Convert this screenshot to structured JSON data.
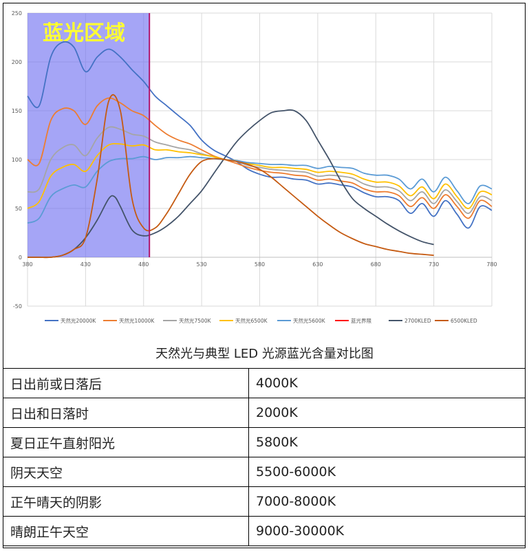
{
  "chart_data": {
    "type": "line",
    "title": "",
    "region_label": "蓝光区域",
    "region_range": [
      380,
      485
    ],
    "xlim": [
      380,
      780
    ],
    "ylim": [
      -50,
      250
    ],
    "x_ticks": [
      380,
      430,
      480,
      530,
      580,
      630,
      680,
      730,
      780
    ],
    "y_ticks": [
      -50,
      0,
      50,
      100,
      150,
      200,
      250
    ],
    "grid": true,
    "legend_position": "bottom",
    "series": [
      {
        "name": "天然光20000K",
        "color": "#4472c4",
        "x": [
          380,
          390,
          400,
          410,
          420,
          430,
          440,
          450,
          460,
          470,
          480,
          490,
          500,
          510,
          520,
          530,
          540,
          550,
          560,
          570,
          580,
          590,
          600,
          610,
          620,
          630,
          640,
          650,
          660,
          670,
          680,
          690,
          700,
          710,
          720,
          730,
          740,
          750,
          760,
          770,
          780
        ],
        "y": [
          165,
          155,
          205,
          220,
          215,
          190,
          205,
          213,
          205,
          192,
          180,
          165,
          155,
          145,
          135,
          120,
          110,
          104,
          98,
          90,
          85,
          82,
          82,
          80,
          79,
          75,
          76,
          74,
          72,
          66,
          62,
          62,
          58,
          45,
          55,
          42,
          58,
          44,
          30,
          52,
          48
        ]
      },
      {
        "name": "天然光10000K",
        "color": "#ed7d31",
        "x": [
          380,
          390,
          400,
          410,
          420,
          430,
          440,
          450,
          460,
          470,
          480,
          490,
          500,
          510,
          520,
          530,
          540,
          550,
          560,
          570,
          580,
          590,
          600,
          610,
          620,
          630,
          640,
          650,
          660,
          670,
          680,
          690,
          700,
          710,
          720,
          730,
          740,
          750,
          760,
          770,
          780
        ],
        "y": [
          100,
          96,
          140,
          152,
          150,
          136,
          155,
          163,
          158,
          150,
          145,
          135,
          126,
          120,
          116,
          110,
          104,
          100,
          96,
          92,
          89,
          87,
          86,
          84,
          83,
          79,
          80,
          78,
          76,
          70,
          67,
          67,
          63,
          52,
          61,
          50,
          64,
          52,
          40,
          58,
          52
        ]
      },
      {
        "name": "天然光7500K",
        "color": "#a5a5a5",
        "x": [
          380,
          390,
          400,
          410,
          420,
          430,
          440,
          450,
          460,
          470,
          480,
          490,
          500,
          510,
          520,
          530,
          540,
          550,
          560,
          570,
          580,
          590,
          600,
          610,
          620,
          630,
          640,
          650,
          660,
          670,
          680,
          690,
          700,
          710,
          720,
          730,
          740,
          750,
          760,
          770,
          780
        ],
        "y": [
          67,
          70,
          100,
          112,
          115,
          104,
          122,
          133,
          131,
          126,
          124,
          118,
          115,
          112,
          110,
          106,
          103,
          100,
          98,
          94,
          92,
          90,
          89,
          88,
          87,
          83,
          84,
          83,
          81,
          75,
          72,
          72,
          68,
          58,
          67,
          55,
          69,
          57,
          45,
          62,
          58
        ]
      },
      {
        "name": "天然光6500K",
        "color": "#ffc000",
        "x": [
          380,
          390,
          400,
          410,
          420,
          430,
          440,
          450,
          460,
          470,
          480,
          490,
          500,
          510,
          520,
          530,
          540,
          550,
          560,
          570,
          580,
          590,
          600,
          610,
          620,
          630,
          640,
          650,
          660,
          670,
          680,
          690,
          700,
          710,
          720,
          730,
          740,
          750,
          760,
          770,
          780
        ],
        "y": [
          50,
          57,
          83,
          92,
          95,
          88,
          104,
          115,
          116,
          114,
          115,
          110,
          110,
          108,
          107,
          105,
          103,
          100,
          99,
          96,
          94,
          92,
          92,
          91,
          90,
          87,
          88,
          87,
          85,
          80,
          77,
          77,
          73,
          63,
          72,
          60,
          75,
          62,
          50,
          67,
          64
        ]
      },
      {
        "name": "天然光5600K",
        "color": "#5b9bd5",
        "x": [
          380,
          390,
          400,
          410,
          420,
          430,
          440,
          450,
          460,
          470,
          480,
          490,
          500,
          510,
          520,
          530,
          540,
          550,
          560,
          570,
          580,
          590,
          600,
          610,
          620,
          630,
          640,
          650,
          660,
          670,
          680,
          690,
          700,
          710,
          720,
          730,
          740,
          750,
          760,
          770,
          780
        ],
        "y": [
          35,
          40,
          62,
          70,
          74,
          72,
          88,
          98,
          101,
          101,
          103,
          100,
          102,
          102,
          103,
          102,
          101,
          100,
          99,
          97,
          96,
          95,
          95,
          94,
          94,
          91,
          93,
          92,
          91,
          86,
          84,
          84,
          80,
          70,
          80,
          67,
          82,
          68,
          55,
          73,
          70
        ]
      },
      {
        "name": "蓝光界限",
        "color": "#ff0000",
        "x": [],
        "y": []
      },
      {
        "name": "2700KLED",
        "color": "#44546a",
        "x": [
          380,
          390,
          400,
          410,
          420,
          430,
          440,
          450,
          455,
          460,
          470,
          480,
          490,
          500,
          510,
          520,
          530,
          540,
          550,
          560,
          570,
          580,
          590,
          600,
          610,
          620,
          630,
          640,
          650,
          660,
          670,
          680,
          690,
          700,
          710,
          720,
          730
        ],
        "y": [
          0,
          0,
          0,
          2,
          8,
          20,
          38,
          60,
          62,
          52,
          28,
          22,
          25,
          32,
          42,
          55,
          68,
          85,
          102,
          118,
          130,
          140,
          148,
          150,
          150,
          140,
          120,
          100,
          78,
          60,
          50,
          42,
          34,
          27,
          21,
          16,
          13
        ]
      },
      {
        "name": "6500KLED",
        "color": "#c55a11",
        "x": [
          380,
          390,
          400,
          410,
          420,
          430,
          440,
          450,
          460,
          470,
          480,
          490,
          500,
          510,
          520,
          530,
          540,
          550,
          560,
          570,
          580,
          590,
          600,
          610,
          620,
          630,
          640,
          650,
          660,
          670,
          680,
          690,
          700,
          710,
          720,
          730
        ],
        "y": [
          0,
          0,
          0,
          2,
          8,
          20,
          80,
          160,
          150,
          60,
          30,
          30,
          45,
          65,
          85,
          98,
          101,
          100,
          98,
          95,
          90,
          82,
          72,
          62,
          52,
          42,
          33,
          25,
          19,
          14,
          11,
          8,
          6,
          4,
          3,
          2
        ]
      }
    ]
  },
  "caption": "天然光与典型 LED 光源蓝光含量对比图",
  "table": [
    [
      "日出前或日落后",
      "4000K"
    ],
    [
      "日出和日落时",
      "2000K"
    ],
    [
      "夏日正午直射阳光",
      "5800K"
    ],
    [
      "阴天天空",
      "5500-6000K"
    ],
    [
      "正午晴天的阴影",
      "7000-8000K"
    ],
    [
      "晴朗正午天空",
      "9000-30000K"
    ]
  ]
}
